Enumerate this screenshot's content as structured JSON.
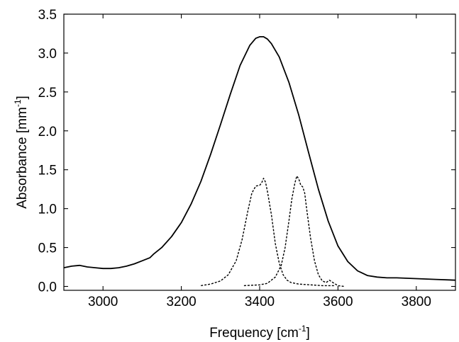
{
  "chart_data": {
    "type": "line",
    "title": "",
    "xlabel": {
      "main": "Frequency [cm",
      "sup": "-1",
      "end": "]"
    },
    "ylabel": {
      "main": "Absorbance [mm",
      "sup": "-1",
      "end": "]"
    },
    "xlim": [
      2900,
      3900
    ],
    "ylim": [
      -0.05,
      3.5
    ],
    "xticks": [
      3000,
      3200,
      3400,
      3600,
      3800
    ],
    "xtick_labels": [
      "3000",
      "3200",
      "3400",
      "3600",
      "3800"
    ],
    "yticks": [
      0.0,
      0.5,
      1.0,
      1.5,
      2.0,
      2.5,
      3.0,
      3.5
    ],
    "ytick_labels": [
      "0.0",
      "0.5",
      "1.0",
      "1.5",
      "2.0",
      "2.5",
      "3.0",
      "3.5"
    ],
    "grid": false,
    "series": [
      {
        "style": "solid",
        "x": [
          2900,
          2920,
          2940,
          2960,
          2980,
          3000,
          3020,
          3040,
          3060,
          3080,
          3100,
          3120,
          3130,
          3150,
          3175,
          3200,
          3225,
          3250,
          3275,
          3300,
          3325,
          3350,
          3375,
          3390,
          3400,
          3410,
          3420,
          3430,
          3450,
          3475,
          3500,
          3525,
          3550,
          3575,
          3600,
          3625,
          3650,
          3675,
          3700,
          3725,
          3750,
          3800,
          3850,
          3900
        ],
        "y": [
          0.24,
          0.26,
          0.27,
          0.25,
          0.24,
          0.23,
          0.23,
          0.24,
          0.26,
          0.29,
          0.33,
          0.37,
          0.42,
          0.5,
          0.64,
          0.82,
          1.06,
          1.35,
          1.7,
          2.08,
          2.47,
          2.84,
          3.1,
          3.19,
          3.21,
          3.21,
          3.18,
          3.12,
          2.95,
          2.62,
          2.2,
          1.72,
          1.25,
          0.84,
          0.52,
          0.32,
          0.2,
          0.14,
          0.12,
          0.11,
          0.11,
          0.1,
          0.09,
          0.08
        ]
      },
      {
        "style": "dashed",
        "x": [
          3250,
          3275,
          3300,
          3320,
          3340,
          3355,
          3370,
          3380,
          3390,
          3400,
          3405,
          3410,
          3415,
          3420,
          3430,
          3440,
          3450,
          3460,
          3470,
          3480,
          3500,
          3530,
          3560,
          3590
        ],
        "y": [
          0.01,
          0.03,
          0.07,
          0.15,
          0.33,
          0.6,
          0.97,
          1.2,
          1.29,
          1.3,
          1.33,
          1.39,
          1.34,
          1.22,
          0.92,
          0.55,
          0.3,
          0.15,
          0.08,
          0.05,
          0.03,
          0.02,
          0.01,
          0.01
        ]
      },
      {
        "style": "dashed",
        "x": [
          3360,
          3400,
          3420,
          3440,
          3455,
          3465,
          3475,
          3482,
          3490,
          3495,
          3500,
          3505,
          3510,
          3515,
          3520,
          3530,
          3540,
          3550,
          3560,
          3570,
          3578,
          3590,
          3600,
          3615
        ],
        "y": [
          0.01,
          0.02,
          0.04,
          0.12,
          0.27,
          0.5,
          0.85,
          1.12,
          1.33,
          1.42,
          1.38,
          1.3,
          1.28,
          1.2,
          1.0,
          0.62,
          0.33,
          0.15,
          0.07,
          0.05,
          0.08,
          0.04,
          0.01,
          0.0
        ]
      }
    ]
  }
}
